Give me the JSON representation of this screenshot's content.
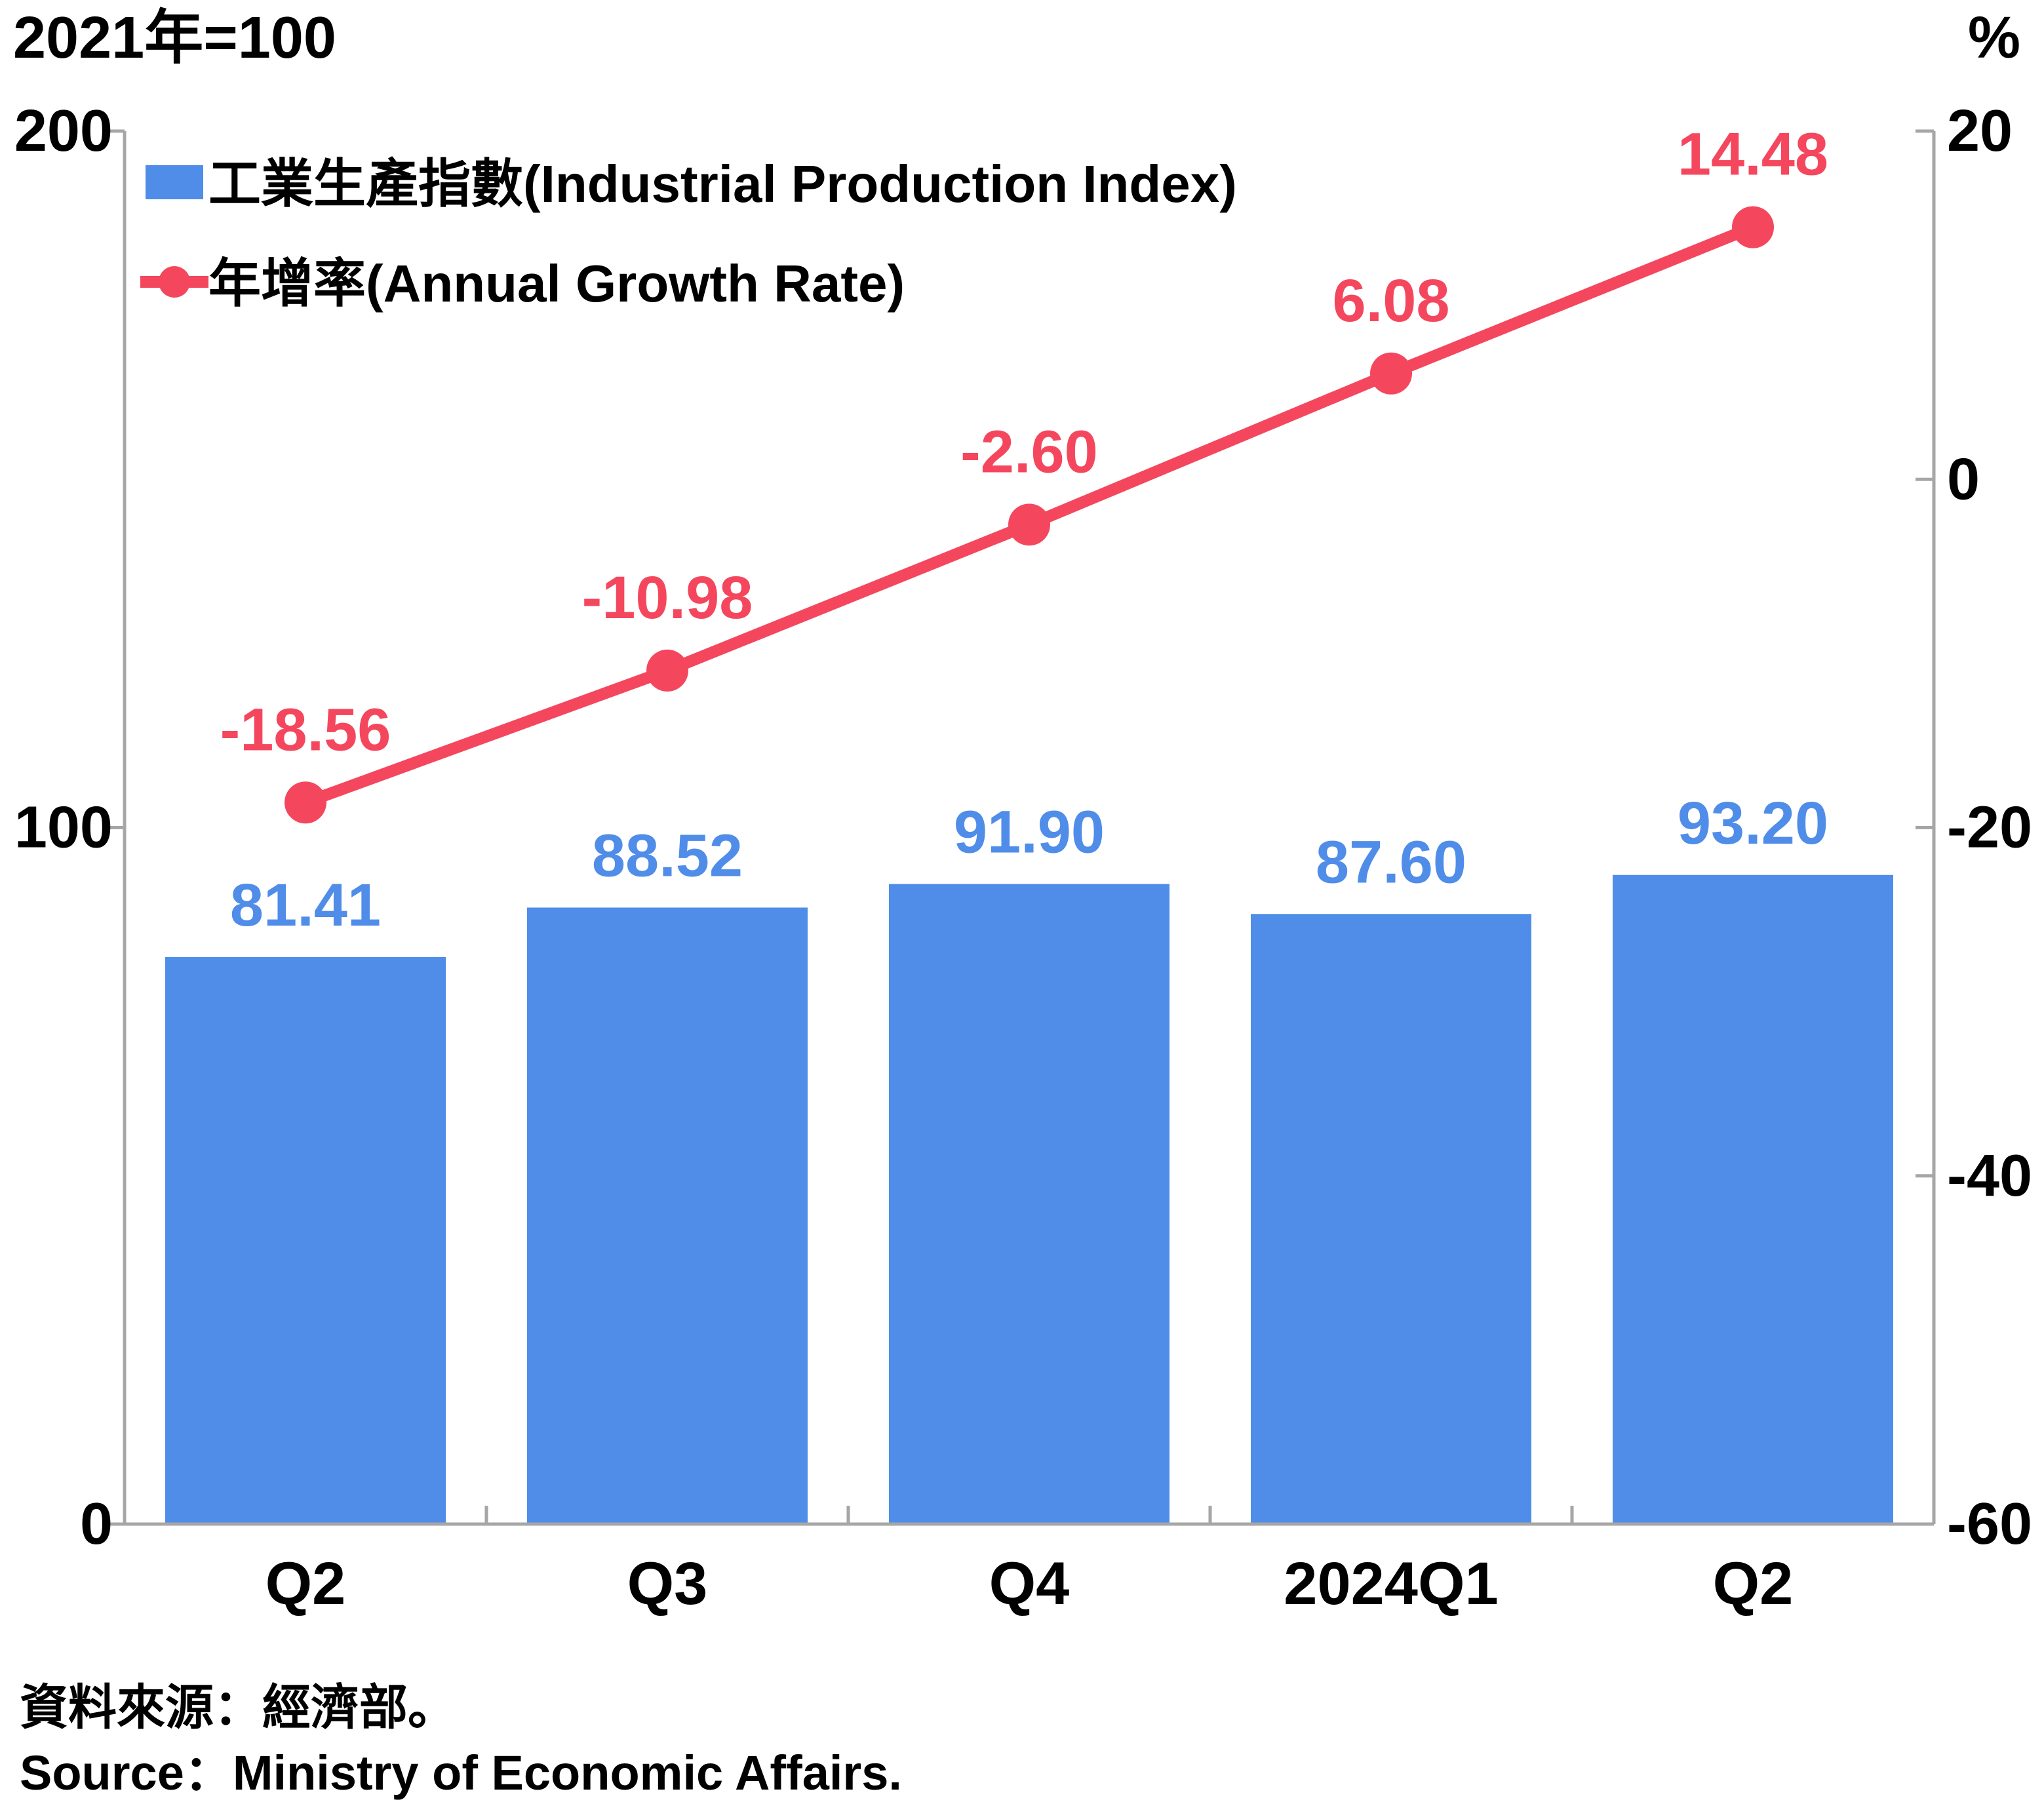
{
  "chart_data": {
    "type": "bar",
    "categories": [
      "Q2",
      "Q3",
      "Q4",
      "2024Q1",
      "Q2"
    ],
    "left_axis": {
      "unit_label": "2021年=100",
      "range": [
        0,
        200
      ],
      "ticks": [
        "0",
        "100",
        "200"
      ]
    },
    "right_axis": {
      "unit_label": "%",
      "range": [
        -60,
        20
      ],
      "ticks": [
        "-60",
        "-40",
        "-20",
        "0",
        "20"
      ]
    },
    "series": [
      {
        "name": "工業生產指數(Industrial Production Index)",
        "type": "bar",
        "axis": "left",
        "color": "#4f8de9",
        "values": [
          81.41,
          88.52,
          91.9,
          87.6,
          93.2
        ],
        "labels": [
          "81.41",
          "88.52",
          "91.90",
          "87.60",
          "93.20"
        ]
      },
      {
        "name": "年增率(Annual Growth Rate)",
        "type": "line",
        "axis": "right",
        "color": "#f4475e",
        "values": [
          -18.56,
          -10.98,
          -2.6,
          6.08,
          14.48
        ],
        "labels": [
          "-18.56",
          "-10.98",
          "-2.60",
          "6.08",
          "14.48"
        ]
      }
    ],
    "legend_position": "top-left",
    "grid": false
  },
  "footer": {
    "source_zh": "資料來源：經濟部。",
    "source_en": "Source：Ministry of Economic Affairs."
  }
}
